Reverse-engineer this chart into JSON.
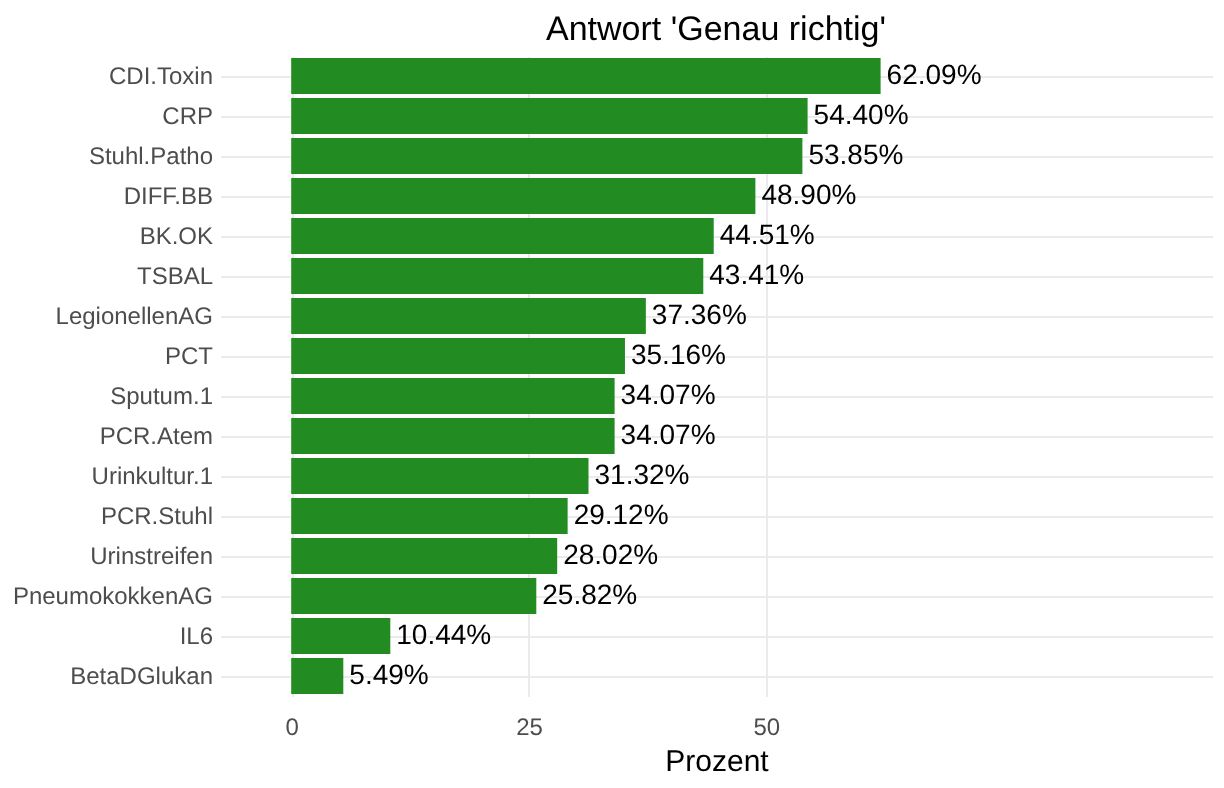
{
  "chart_data": {
    "type": "bar",
    "orientation": "horizontal",
    "title": "Antwort 'Genau richtig'",
    "xlabel": "Prozent",
    "categories": [
      "CDI.Toxin",
      "CRP",
      "Stuhl.Patho",
      "DIFF.BB",
      "BK.OK",
      "TSBAL",
      "LegionellenAG",
      "PCT",
      "Sputum.1",
      "PCR.Atem",
      "Urinkultur.1",
      "PCR.Stuhl",
      "Urinstreifen",
      "PneumokokkenAG",
      "IL6",
      "BetaDGlukan"
    ],
    "values": [
      62.09,
      54.4,
      53.85,
      48.9,
      44.51,
      43.41,
      37.36,
      35.16,
      34.07,
      34.07,
      31.32,
      29.12,
      28.02,
      25.82,
      10.44,
      5.49
    ],
    "value_labels": [
      "62.09%",
      "54.40%",
      "53.85%",
      "48.90%",
      "44.51%",
      "43.41%",
      "37.36%",
      "35.16%",
      "34.07%",
      "34.07%",
      "31.32%",
      "29.12%",
      "28.02%",
      "25.82%",
      "10.44%",
      "5.49%"
    ],
    "color": "#228b22",
    "xlim": [
      -7.5,
      97
    ],
    "xticks": [
      0,
      25,
      50
    ],
    "grid": true
  }
}
